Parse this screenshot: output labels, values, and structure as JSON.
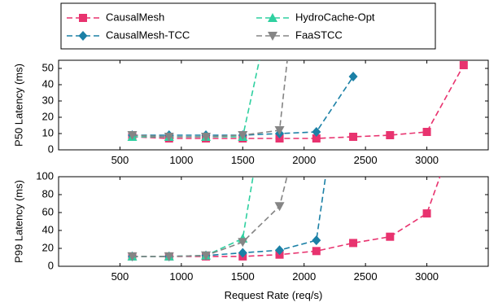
{
  "chart_data": [
    {
      "type": "line",
      "ylabel": "P50 Latency (ms)",
      "xlim": [
        0,
        3500
      ],
      "ylim": [
        0,
        55
      ],
      "xticks": [
        500,
        1000,
        1500,
        2000,
        2500,
        3000
      ],
      "yticks": [
        0,
        10,
        20,
        30,
        40,
        50
      ],
      "series": [
        {
          "name": "CausalMesh",
          "color": "#e8336f",
          "marker": "square",
          "x": [
            600,
            900,
            1200,
            1500,
            1800,
            2100,
            2400,
            2700,
            3000,
            3300
          ],
          "y": [
            8,
            7,
            7,
            7,
            7,
            7,
            8,
            9,
            11,
            52
          ]
        },
        {
          "name": "CausalMesh-TCC",
          "color": "#1b80a6",
          "marker": "diamond",
          "x": [
            600,
            900,
            1200,
            1500,
            1800,
            2100,
            2400
          ],
          "y": [
            9,
            9,
            9,
            9,
            10,
            11,
            45
          ]
        },
        {
          "name": "HydroCache-Opt",
          "color": "#2fd0a0",
          "marker": "triangle-up",
          "x": [
            600,
            900,
            1200,
            1500,
            1650
          ],
          "y": [
            8,
            8,
            8,
            8,
            60
          ]
        },
        {
          "name": "FaaSTCC",
          "color": "#858585",
          "marker": "triangle-down",
          "x": [
            600,
            900,
            1200,
            1500,
            1800,
            1870
          ],
          "y": [
            9,
            8,
            8,
            9,
            12,
            60
          ]
        }
      ]
    },
    {
      "type": "line",
      "xlabel": "Request Rate (req/s)",
      "ylabel": "P99 Latency (ms)",
      "xlim": [
        0,
        3500
      ],
      "ylim": [
        0,
        100
      ],
      "xticks": [
        500,
        1000,
        1500,
        2000,
        2500,
        3000
      ],
      "yticks": [
        0,
        20,
        40,
        60,
        80,
        100
      ],
      "series": [
        {
          "name": "CausalMesh",
          "color": "#e8336f",
          "marker": "square",
          "x": [
            600,
            900,
            1200,
            1500,
            1800,
            2100,
            2400,
            2700,
            3000,
            3120
          ],
          "y": [
            11,
            11,
            11,
            11,
            13,
            17,
            26,
            33,
            59,
            105
          ]
        },
        {
          "name": "CausalMesh-TCC",
          "color": "#1b80a6",
          "marker": "diamond",
          "x": [
            600,
            900,
            1200,
            1500,
            1800,
            2100,
            2180
          ],
          "y": [
            11,
            11,
            12,
            15,
            18,
            29,
            105
          ]
        },
        {
          "name": "HydroCache-Opt",
          "color": "#2fd0a0",
          "marker": "triangle-up",
          "x": [
            600,
            900,
            1200,
            1500,
            1590
          ],
          "y": [
            11,
            11,
            12,
            31,
            105
          ]
        },
        {
          "name": "FaaSTCC",
          "color": "#858585",
          "marker": "triangle-down",
          "x": [
            600,
            900,
            1200,
            1500,
            1800,
            1870
          ],
          "y": [
            11,
            11,
            12,
            27,
            67,
            105
          ]
        }
      ]
    }
  ],
  "legend": {
    "placement": "top",
    "items": [
      {
        "label": "CausalMesh",
        "color": "#e8336f",
        "marker": "square"
      },
      {
        "label": "HydroCache-Opt",
        "color": "#2fd0a0",
        "marker": "triangle-up"
      },
      {
        "label": "CausalMesh-TCC",
        "color": "#1b80a6",
        "marker": "diamond"
      },
      {
        "label": "FaaSTCC",
        "color": "#858585",
        "marker": "triangle-down"
      }
    ]
  }
}
